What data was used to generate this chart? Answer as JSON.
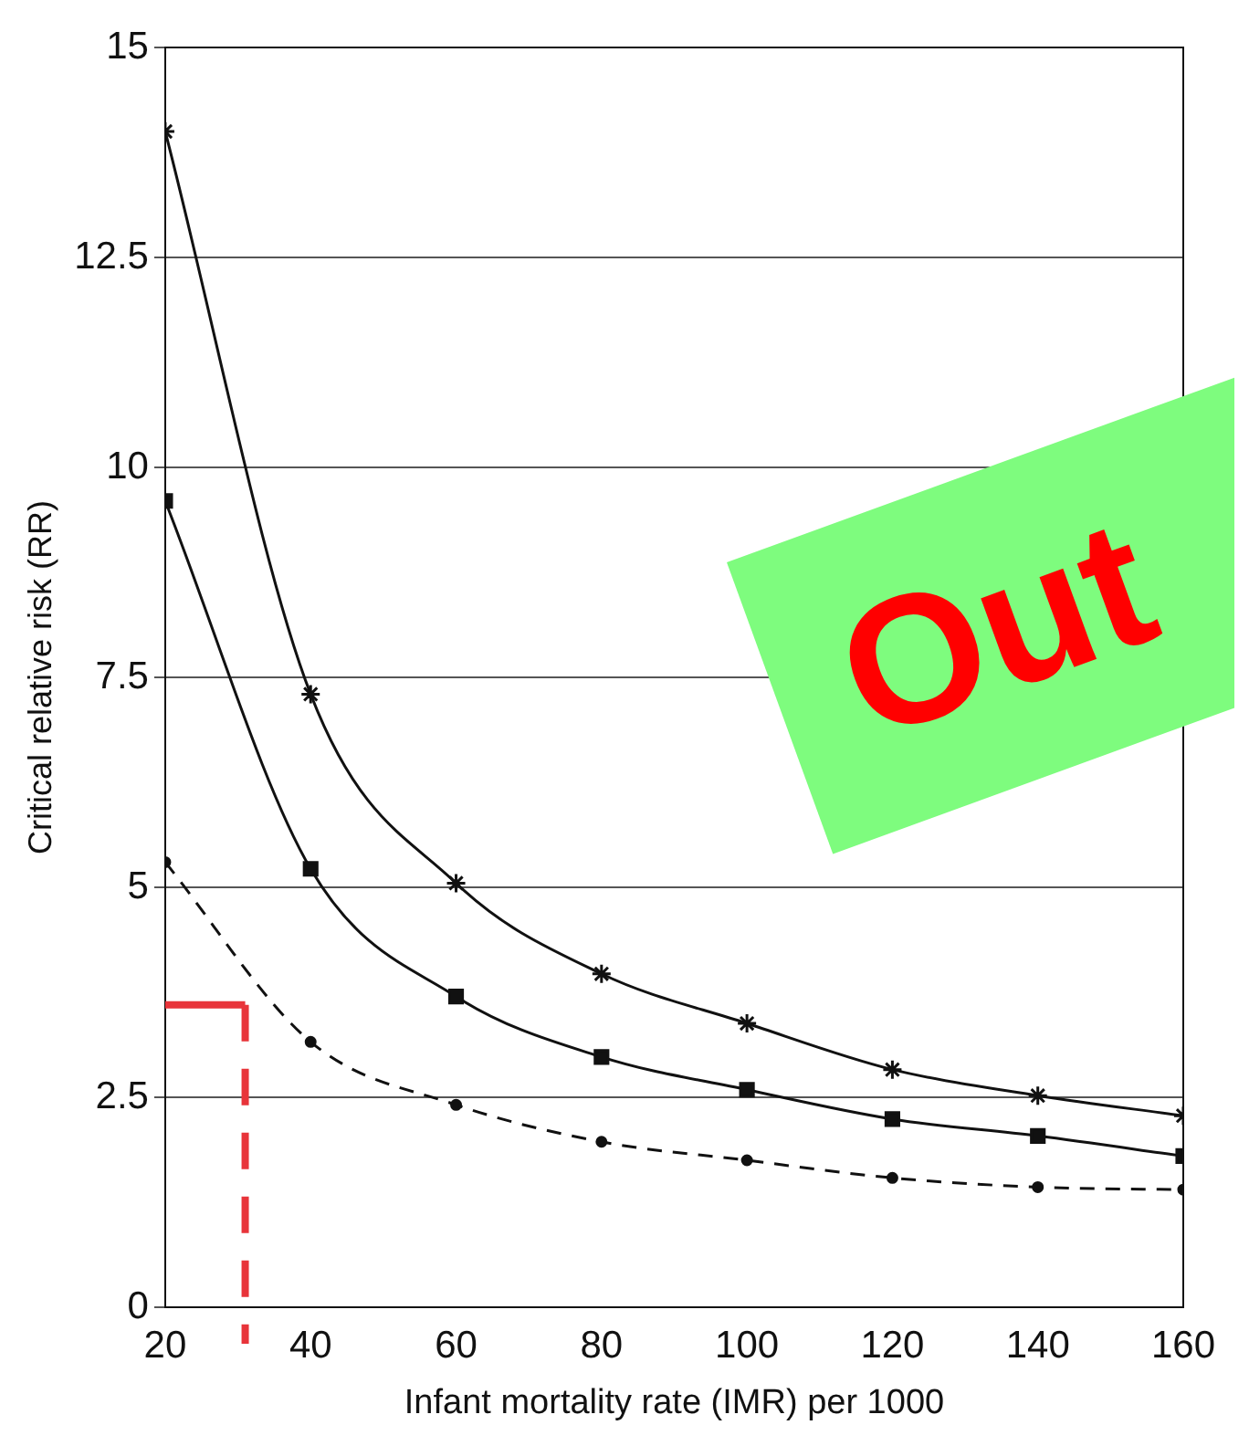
{
  "chart_data": {
    "type": "line",
    "xlabel": "Infant mortality rate (IMR) per 1000",
    "ylabel": "Critical relative risk (RR)",
    "x": [
      20,
      40,
      60,
      80,
      100,
      120,
      140,
      160
    ],
    "series": [
      {
        "color": "#111111",
        "marker": "cross",
        "line_style": "solid",
        "values": [
          14,
          7.3,
          5.05,
          3.97,
          3.38,
          2.83,
          2.52,
          2.28
        ]
      },
      {
        "color": "#111111",
        "marker": "square",
        "line_style": "solid",
        "values": [
          9.6,
          5.22,
          3.7,
          2.98,
          2.59,
          2.24,
          2.04,
          1.8
        ]
      },
      {
        "color": "#111111",
        "marker": "circle",
        "line_style": "dashed",
        "values": [
          5.3,
          3.16,
          2.41,
          1.97,
          1.75,
          1.54,
          1.43,
          1.4
        ]
      },
      {
        "type": "line",
        "color": "#e8343a",
        "marker": "none",
        "line_style": "solid",
        "x": [
          20,
          31
        ],
        "values": [
          3.6,
          3.6
        ]
      }
    ],
    "xlim": [
      20,
      160
    ],
    "xticks": [
      20,
      40,
      60,
      80,
      100,
      120,
      140,
      160
    ],
    "ylim": [
      0,
      15
    ],
    "yticks": [
      0,
      2.5,
      5,
      7.5,
      10,
      12.5,
      15
    ],
    "grid": "y",
    "legend": false,
    "ref_lines": [
      {
        "axis": "x",
        "value": 31,
        "color": "#e8343a",
        "line_style": "dashed"
      }
    ],
    "annotations": [
      "Out"
    ]
  }
}
